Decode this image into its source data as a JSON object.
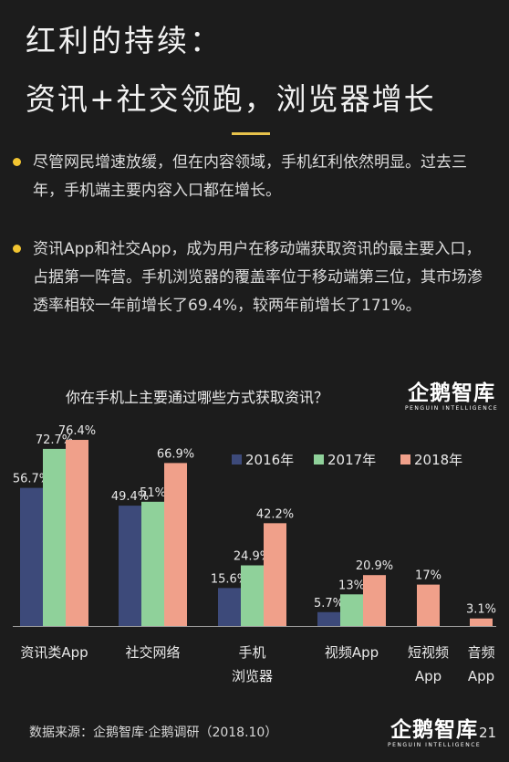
{
  "header": {
    "title_line1": "红利的持续：",
    "title_line2": "资讯+社交领跑，浏览器增长"
  },
  "bullets": [
    "尽管网民增速放缓，但在内容领域，手机红利依然明显。过去三年，手机端主要内容入口都在增长。",
    "资讯App和社交App，成为用户在移动端获取资讯的最主要入口，占据第一阵营。手机浏览器的覆盖率位于移动端第三位，其市场渗透率相较一年前增长了69.4%，较两年前增长了171%。"
  ],
  "logo": {
    "main": "企鹅智库",
    "sub": "PENGUIN INTELLIGENCE"
  },
  "footer": {
    "source": "数据来源：企鹅智库·企鹅调研（2018.10）",
    "page": "21"
  },
  "chart_data": {
    "type": "bar",
    "title": "你在手机上主要通过哪些方式获取资讯？",
    "categories": [
      "资讯类App",
      "社交网络",
      "手机\n浏览器",
      "视频App",
      "短视频\nApp",
      "音频\nApp"
    ],
    "series": [
      {
        "name": "2016年",
        "color": "#3d4a7a",
        "values": [
          56.7,
          49.4,
          15.6,
          5.7,
          null,
          null
        ]
      },
      {
        "name": "2017年",
        "color": "#8fd19a",
        "values": [
          72.7,
          51.0,
          24.9,
          13.0,
          null,
          null
        ]
      },
      {
        "name": "2018年",
        "color": "#f0a08a",
        "values": [
          76.4,
          66.9,
          42.2,
          20.9,
          17.0,
          3.1
        ]
      }
    ],
    "value_suffix": "%",
    "legend_position": "top-right",
    "grid": false
  }
}
